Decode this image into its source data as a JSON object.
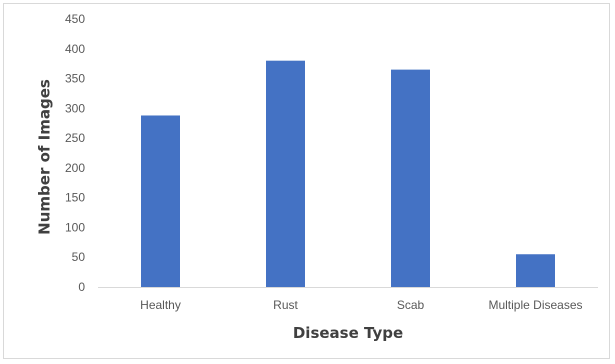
{
  "chart_data": {
    "type": "bar",
    "title": "",
    "xlabel": "Disease Type",
    "ylabel": "Number of Images",
    "categories": [
      "Healthy",
      "Rust",
      "Scab",
      "Multiple Diseases"
    ],
    "values": [
      288,
      380,
      365,
      55
    ],
    "ylim": [
      0,
      450
    ],
    "yticks": [
      0,
      50,
      100,
      150,
      200,
      250,
      300,
      350,
      400,
      450
    ],
    "grid": false,
    "legend": "none",
    "bar_color": "#4472C4",
    "axis_color": "#d9d9d9"
  }
}
